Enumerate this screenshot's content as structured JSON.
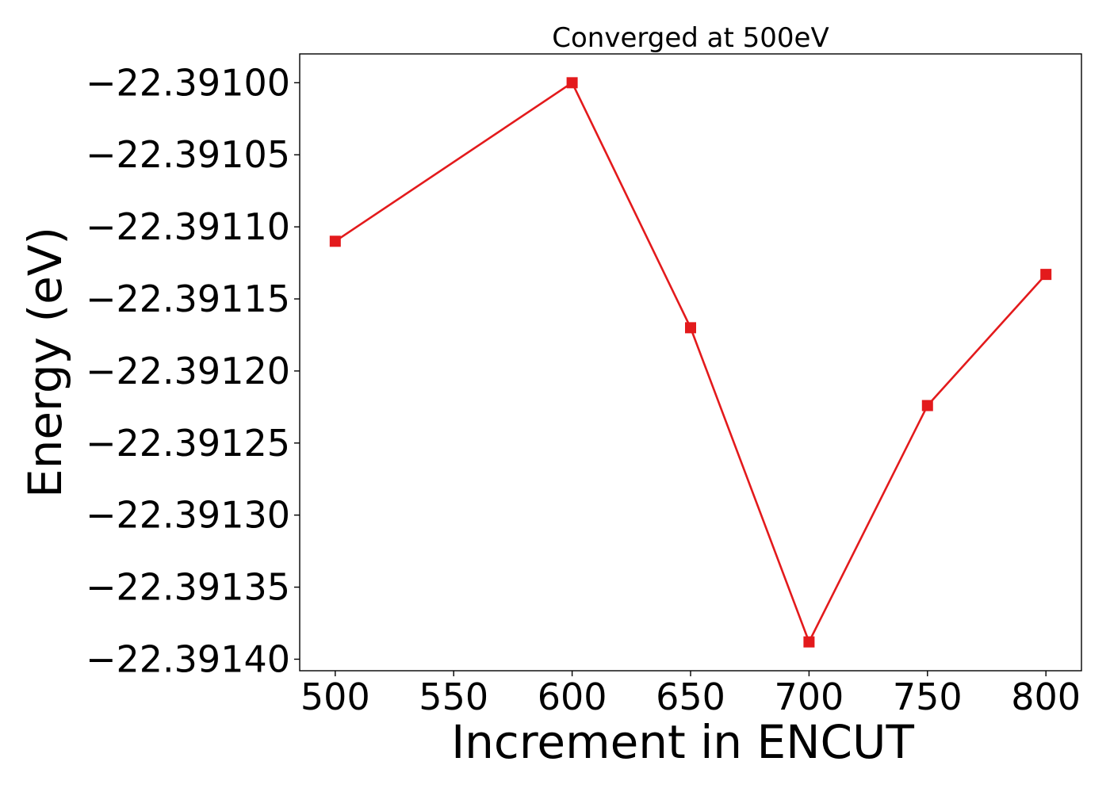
{
  "chart_data": {
    "type": "line",
    "title": "Converged at 500eV",
    "xlabel": "Increment in ENCUT",
    "ylabel": "Energy (eV)",
    "x": [
      500,
      600,
      650,
      700,
      750,
      800
    ],
    "series": [
      {
        "values": [
          -22.39111,
          -22.391,
          -22.39117,
          -22.391388,
          -22.391224,
          -22.391133
        ],
        "color": "#e31a1c",
        "marker": "square"
      }
    ],
    "xticks": [
      "500",
      "550",
      "600",
      "650",
      "700",
      "750",
      "800"
    ],
    "xtick_values": [
      500,
      550,
      600,
      650,
      700,
      750,
      800
    ],
    "yticks": [
      "−22.39100",
      "−22.39105",
      "−22.39110",
      "−22.39115",
      "−22.39120",
      "−22.39125",
      "−22.39130",
      "−22.39135",
      "−22.39140"
    ],
    "ytick_values": [
      -22.391,
      -22.39105,
      -22.3911,
      -22.39115,
      -22.3912,
      -22.39125,
      -22.3913,
      -22.39135,
      -22.3914
    ],
    "xlim": [
      485,
      815
    ],
    "ylim": [
      -22.391408,
      -22.39098
    ],
    "grid": false,
    "legend": "none"
  }
}
